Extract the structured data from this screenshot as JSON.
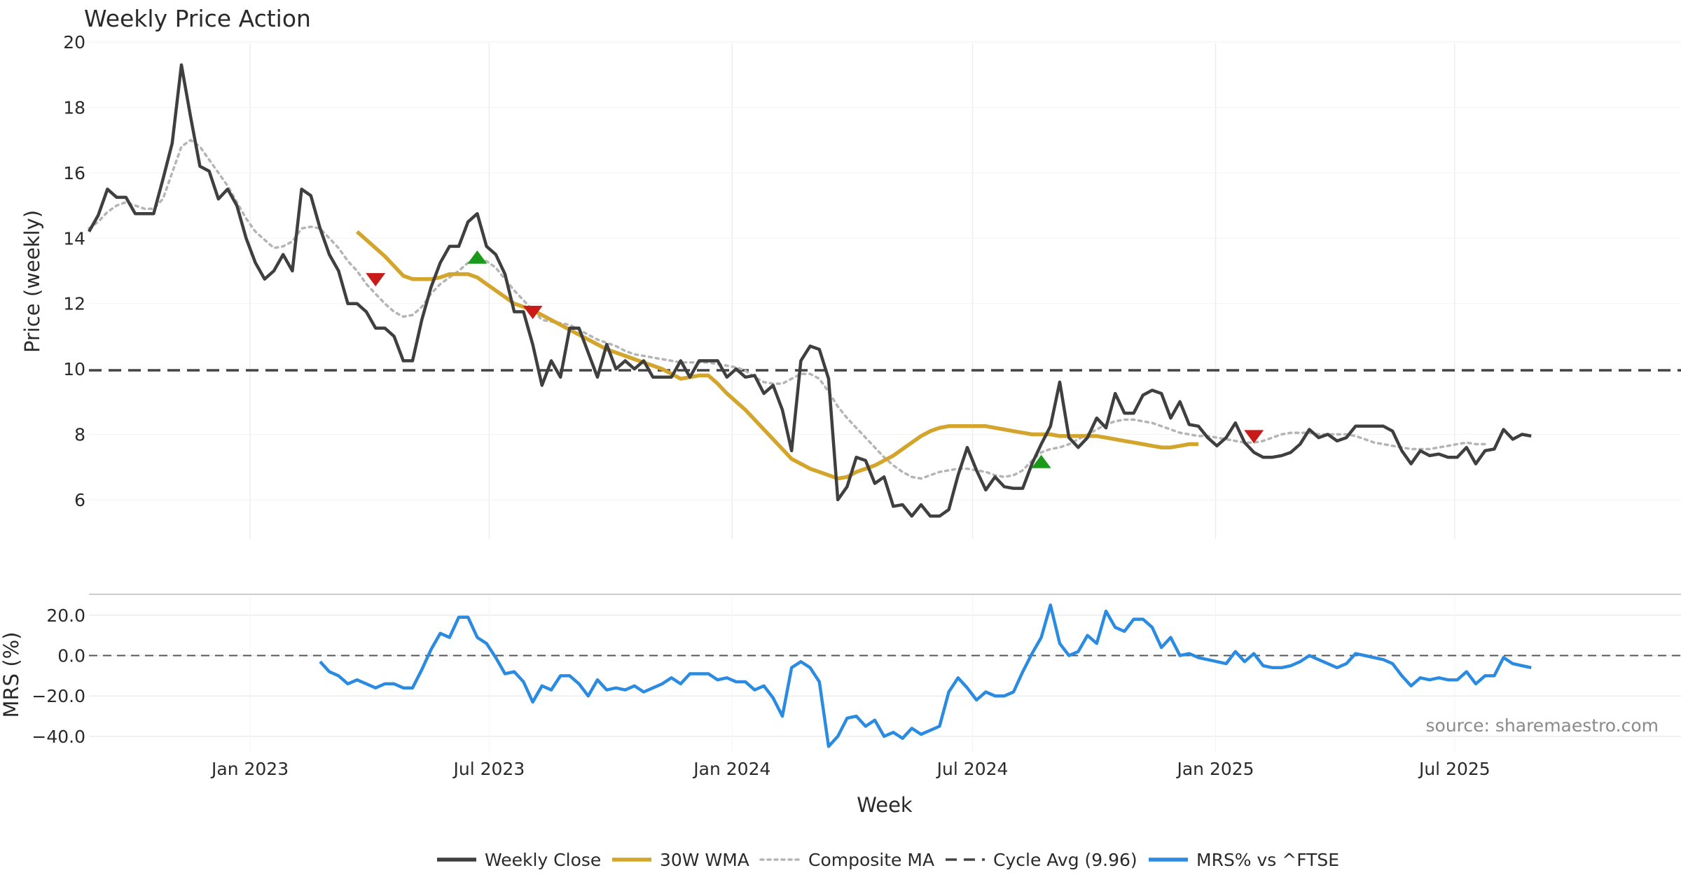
{
  "chart_data": [
    {
      "type": "line",
      "title": "Weekly Price Action",
      "ylabel": "Price (weekly)",
      "xlabel": "",
      "ylim": [
        4.8,
        20
      ],
      "yticks": [
        6,
        8,
        10,
        12,
        14,
        16,
        18,
        20
      ],
      "x_start": "2022-09-01",
      "week_days": 7,
      "cycle_avg": 9.96,
      "series": [
        {
          "name": "Weekly Close",
          "color": "#3f3f3f",
          "start_index": 0,
          "values": [
            14.2,
            14.7,
            15.5,
            15.25,
            15.25,
            14.75,
            14.75,
            14.75,
            15.8,
            16.9,
            19.3,
            17.7,
            16.2,
            16.05,
            15.2,
            15.5,
            15.0,
            14.0,
            13.25,
            12.75,
            13.0,
            13.5,
            13.0,
            15.5,
            15.3,
            14.3,
            13.5,
            13.0,
            12.0,
            12.0,
            11.75,
            11.25,
            11.25,
            11.0,
            10.25,
            10.25,
            11.5,
            12.5,
            13.25,
            13.75,
            13.75,
            14.5,
            14.75,
            13.75,
            13.5,
            12.9,
            11.75,
            11.75,
            10.75,
            9.5,
            10.25,
            9.75,
            11.25,
            11.25,
            10.5,
            9.75,
            10.75,
            10.0,
            10.25,
            10.0,
            10.25,
            9.75,
            9.75,
            9.75,
            10.25,
            9.75,
            10.25,
            10.25,
            10.25,
            9.75,
            10.0,
            9.75,
            9.8,
            9.25,
            9.5,
            8.75,
            7.5,
            10.25,
            10.7,
            10.6,
            9.7,
            6.0,
            6.4,
            7.3,
            7.2,
            6.5,
            6.7,
            5.8,
            5.85,
            5.5,
            5.85,
            5.5,
            5.5,
            5.7,
            6.75,
            7.6,
            6.9,
            6.3,
            6.7,
            6.4,
            6.35,
            6.35,
            7.1,
            7.7,
            8.25,
            9.6,
            7.9,
            7.6,
            7.9,
            8.5,
            8.2,
            9.25,
            8.65,
            8.65,
            9.2,
            9.35,
            9.25,
            8.5,
            9.0,
            8.3,
            8.25,
            7.9,
            7.65,
            7.9,
            8.35,
            7.75,
            7.45,
            7.3,
            7.3,
            7.35,
            7.45,
            7.7,
            8.15,
            7.9,
            8.0,
            7.8,
            7.9,
            8.25,
            8.25,
            8.25,
            8.25,
            8.1,
            7.5,
            7.1,
            7.5,
            7.35,
            7.4,
            7.3,
            7.3,
            7.6,
            7.1,
            7.5,
            7.55,
            8.15,
            7.85,
            8.0,
            7.95
          ]
        },
        {
          "name": "30W WMA",
          "color": "#d4a52c",
          "start_index": 29,
          "values": [
            14.2,
            13.95,
            13.7,
            13.45,
            13.15,
            12.85,
            12.75,
            12.75,
            12.75,
            12.8,
            12.9,
            12.9,
            12.9,
            12.8,
            12.6,
            12.4,
            12.2,
            12.0,
            11.9,
            11.8,
            11.65,
            11.5,
            11.35,
            11.2,
            11.05,
            10.9,
            10.75,
            10.6,
            10.5,
            10.4,
            10.3,
            10.2,
            10.1,
            10.0,
            9.85,
            9.7,
            9.75,
            9.8,
            9.8,
            9.55,
            9.25,
            9.0,
            8.75,
            8.45,
            8.15,
            7.85,
            7.55,
            7.25,
            7.1,
            6.95,
            6.85,
            6.75,
            6.65,
            6.7,
            6.85,
            6.95,
            7.05,
            7.2,
            7.35,
            7.55,
            7.75,
            7.95,
            8.1,
            8.2,
            8.25,
            8.25,
            8.25,
            8.25,
            8.25,
            8.2,
            8.15,
            8.1,
            8.05,
            8.0,
            8.0,
            8.0,
            7.95,
            7.95,
            7.95,
            7.95,
            7.95,
            7.9,
            7.85,
            7.8,
            7.75,
            7.7,
            7.65,
            7.6,
            7.6,
            7.65,
            7.7,
            7.7
          ]
        },
        {
          "name": "Composite MA",
          "color": "#b5b5b5",
          "start_index": 0,
          "values": [
            14.3,
            14.5,
            14.8,
            15.0,
            15.1,
            15.0,
            14.9,
            14.9,
            15.2,
            16.0,
            16.8,
            17.0,
            16.8,
            16.4,
            16.0,
            15.6,
            15.1,
            14.6,
            14.2,
            13.95,
            13.7,
            13.75,
            13.9,
            14.3,
            14.35,
            14.3,
            14.0,
            13.7,
            13.3,
            13.0,
            12.6,
            12.3,
            12.0,
            11.75,
            11.6,
            11.65,
            11.9,
            12.3,
            12.6,
            12.8,
            13.0,
            13.25,
            13.35,
            13.3,
            13.1,
            12.75,
            12.4,
            12.1,
            11.8,
            11.5,
            11.45,
            11.4,
            11.35,
            11.2,
            11.05,
            10.9,
            10.8,
            10.7,
            10.55,
            10.45,
            10.4,
            10.35,
            10.3,
            10.25,
            10.2,
            10.2,
            10.2,
            10.2,
            10.15,
            10.1,
            10.05,
            9.95,
            9.75,
            9.6,
            9.55,
            9.55,
            9.7,
            9.85,
            9.85,
            9.7,
            9.3,
            8.85,
            8.5,
            8.2,
            7.9,
            7.6,
            7.3,
            7.05,
            6.85,
            6.7,
            6.65,
            6.75,
            6.85,
            6.9,
            6.95,
            6.95,
            6.9,
            6.85,
            6.75,
            6.7,
            6.75,
            6.9,
            7.2,
            7.45,
            7.55,
            7.6,
            7.7,
            7.85,
            8.0,
            8.15,
            8.3,
            8.4,
            8.45,
            8.45,
            8.4,
            8.35,
            8.25,
            8.15,
            8.05,
            8.0,
            7.95,
            7.95,
            7.9,
            7.85,
            7.8,
            7.75,
            7.75,
            7.8,
            7.9,
            8.0,
            8.05,
            8.05,
            8.05,
            8.0,
            8.0,
            8.0,
            8.0,
            7.95,
            7.85,
            7.75,
            7.7,
            7.65,
            7.6,
            7.55,
            7.55,
            7.55,
            7.6,
            7.65,
            7.7,
            7.75,
            7.7,
            7.7
          ]
        }
      ],
      "cycle_line": {
        "name": "Cycle Avg (9.96)",
        "value": 9.96,
        "color": "#444444"
      },
      "signals": [
        {
          "type": "sell",
          "index": 31,
          "value": 12.75,
          "color": "#c91a1a"
        },
        {
          "type": "buy",
          "index": 42,
          "value": 13.4,
          "color": "#1a9a1a"
        },
        {
          "type": "sell",
          "index": 48,
          "value": 11.75,
          "color": "#c91a1a"
        },
        {
          "type": "buy",
          "index": 103,
          "value": 7.15,
          "color": "#1a9a1a"
        },
        {
          "type": "sell",
          "index": 126,
          "value": 7.95,
          "color": "#c91a1a"
        }
      ]
    },
    {
      "type": "line",
      "title": "",
      "ylabel": "MRS (%)",
      "xlabel": "Week",
      "ylim": [
        -48,
        30
      ],
      "yticks": [
        -40.0,
        -20.0,
        0.0,
        20.0
      ],
      "ytick_labels": [
        "−40.0",
        "−20.0",
        "0.0",
        "20.0"
      ],
      "xticks": [
        "Jan 2023",
        "Jul 2023",
        "Jan 2024",
        "Jul 2024",
        "Jan 2025",
        "Jul 2025"
      ],
      "xtick_dates": [
        "2023-01-01",
        "2023-07-01",
        "2024-01-01",
        "2024-07-01",
        "2025-01-01",
        "2025-07-01"
      ],
      "zero_line": 0,
      "series": [
        {
          "name": "MRS% vs ^FTSE",
          "color": "#2b8be0",
          "start_index": 25,
          "values": [
            -3,
            -8,
            -10,
            -14,
            -12,
            -14,
            -16,
            -14,
            -14,
            -16,
            -16,
            -7,
            3,
            11,
            9,
            19,
            19,
            9,
            6,
            -1,
            -9,
            -8,
            -13,
            -23,
            -15,
            -17,
            -10,
            -10,
            -14,
            -20,
            -12,
            -17,
            -16,
            -17,
            -15,
            -18,
            -16,
            -14,
            -11,
            -14,
            -9,
            -9,
            -9,
            -12,
            -11,
            -13,
            -13,
            -17,
            -15,
            -21,
            -30,
            -6,
            -3,
            -6,
            -13,
            -45,
            -40,
            -31,
            -30,
            -35,
            -32,
            -40,
            -38,
            -41,
            -36,
            -39,
            -37,
            -35,
            -18,
            -11,
            -16,
            -22,
            -18,
            -20,
            -20,
            -18,
            -8,
            1,
            9,
            25,
            6,
            0,
            2,
            10,
            6,
            22,
            14,
            12,
            18,
            18,
            14,
            4,
            9,
            0,
            1,
            -1,
            -2,
            -3,
            -4,
            2,
            -3,
            1,
            -5,
            -6,
            -6,
            -5,
            -3,
            0,
            -2,
            -4,
            -6,
            -4,
            1,
            0,
            -1,
            -2,
            -4,
            -10,
            -15,
            -11,
            -12,
            -11,
            -12,
            -12,
            -8,
            -14,
            -10,
            -10,
            -1,
            -4,
            -5,
            -6
          ]
        }
      ],
      "source": "source: sharemaestro.com"
    }
  ],
  "legend": [
    {
      "label": "Weekly Close",
      "style": "solid",
      "color": "#3f3f3f"
    },
    {
      "label": "30W WMA",
      "style": "solid",
      "color": "#d4a52c"
    },
    {
      "label": "Composite MA",
      "style": "dotted",
      "color": "#b5b5b5"
    },
    {
      "label": "Cycle Avg (9.96)",
      "style": "dashed",
      "color": "#444444"
    },
    {
      "label": "MRS% vs ^FTSE",
      "style": "solid",
      "color": "#2b8be0"
    }
  ]
}
